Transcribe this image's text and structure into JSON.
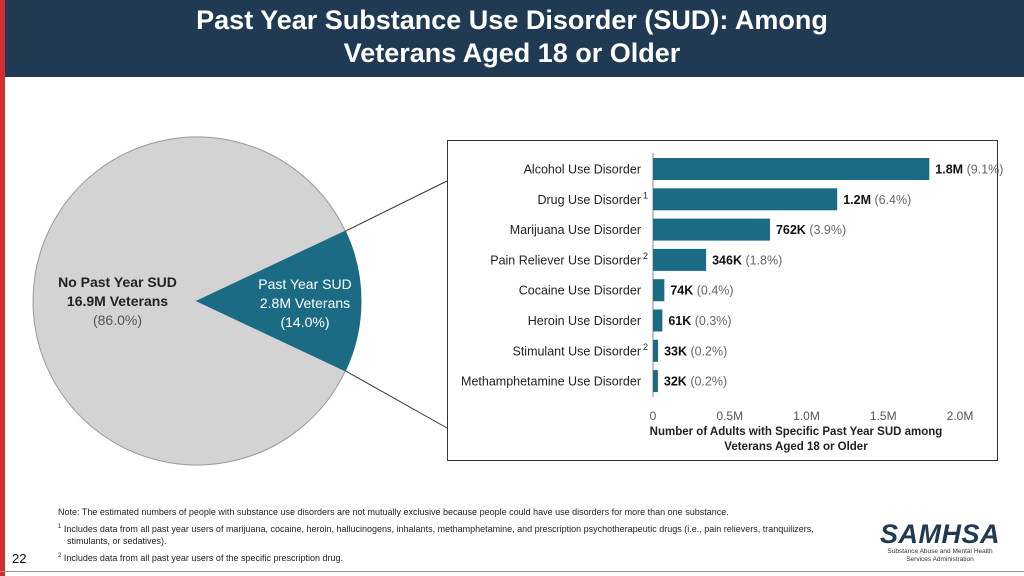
{
  "title": "Past Year Substance Use Disorder (SUD): Among Veterans Aged 18 or Older",
  "colors": {
    "header": "#1f3a52",
    "accent_red": "#d32f2f",
    "pie_gray": "#d3d3d3",
    "bar_teal": "#1c6b84"
  },
  "pie": {
    "no_sud": {
      "line1": "No Past Year SUD",
      "line2": "16.9M Veterans",
      "pct": "(86.0%)"
    },
    "sud": {
      "line1": "Past Year SUD",
      "line2": "2.8M Veterans",
      "pct": "(14.0%)"
    }
  },
  "chart_data": [
    {
      "type": "pie",
      "categories": [
        "No Past Year SUD",
        "Past Year SUD"
      ],
      "values": [
        86.0,
        14.0
      ]
    },
    {
      "type": "bar",
      "orientation": "horizontal",
      "categories": [
        "Alcohol Use Disorder",
        "Drug Use Disorder",
        "Marijuana Use Disorder",
        "Pain Reliever Use Disorder",
        "Cocaine Use Disorder",
        "Heroin Use Disorder",
        "Stimulant Use Disorder",
        "Methamphetamine Use Disorder"
      ],
      "category_superscripts": [
        "",
        "1",
        "",
        "2",
        "",
        "",
        "2",
        ""
      ],
      "values": [
        1800000,
        1200000,
        762000,
        346000,
        74000,
        61000,
        33000,
        32000
      ],
      "value_labels": [
        "1.8M",
        "1.2M",
        "762K",
        "346K",
        "74K",
        "61K",
        "33K",
        "32K"
      ],
      "percent_labels": [
        "(9.1%)",
        "(6.4%)",
        "(3.9%)",
        "(1.8%)",
        "(0.4%)",
        "(0.3%)",
        "(0.2%)",
        "(0.2%)"
      ],
      "xlim": [
        0,
        2000000
      ],
      "xticks": [
        0,
        500000,
        1000000,
        1500000,
        2000000
      ],
      "xtick_labels": [
        "0",
        "0.5M",
        "1.0M",
        "1.5M",
        "2.0M"
      ],
      "xlabel": [
        "Number of Adults with Specific Past Year SUD among",
        "Veterans Aged 18 or Older"
      ]
    }
  ],
  "notes": {
    "main": "Note: The estimated numbers of people with substance use disorders are not mutually exclusive because people could have use disorders for more than one substance.",
    "fn1_mark": "1",
    "fn1": "Includes data from all past year users of marijuana, cocaine, heroin, hallucinogens, inhalants, methamphetamine, and prescription psychotherapeutic drugs (i.e., pain relievers, tranquilizers, stimulants, or sedatives).",
    "fn2_mark": "2",
    "fn2": "Includes data from all past year users of the specific prescription drug."
  },
  "page_number": "22",
  "logo": {
    "word": "SAMHSA",
    "line1": "Substance Abuse and Mental Health",
    "line2": "Services Administration"
  }
}
